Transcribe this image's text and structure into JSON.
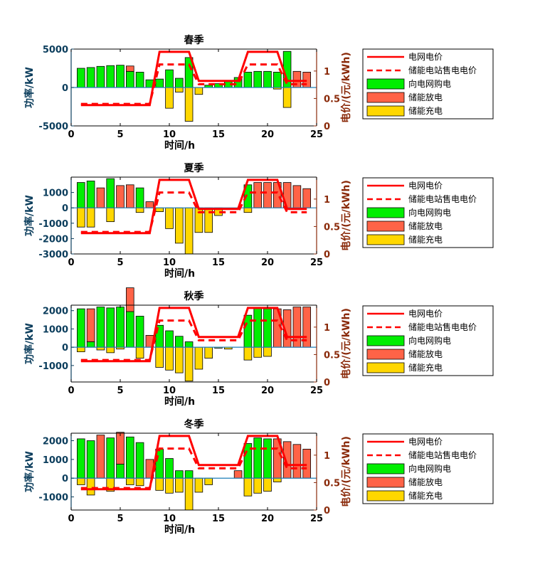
{
  "colors": {
    "grid_price": "#ff0000",
    "sell_price": "#ff0000",
    "buy": "#00ee00",
    "discharge": "#ff6347",
    "charge": "#ffd700",
    "left_axis": "#0b3d5c",
    "right_axis": "#8a2a0a",
    "zero_line": "#1e7fb8"
  },
  "chart_data": [
    {
      "type": "bar",
      "title": "春季",
      "xlabel": "时间/h",
      "ylabel": "功率/kW",
      "y2label": "电价/(元/kWh)",
      "xlim": [
        0,
        25
      ],
      "xticks": [
        0,
        5,
        10,
        15,
        20,
        25
      ],
      "xtick_labels": [
        "0",
        "5",
        "10",
        "15",
        "20",
        "25"
      ],
      "ylim": [
        -5000,
        5000
      ],
      "yticks": [
        -5000,
        0,
        5000
      ],
      "ytick_labels": [
        "-5000",
        "0",
        "5000"
      ],
      "y2lim": [
        0,
        1.4
      ],
      "y2ticks": [
        0,
        0.5,
        1
      ],
      "y2tick_labels": [
        "0",
        "0.5",
        "1"
      ],
      "hours": [
        1,
        2,
        3,
        4,
        5,
        6,
        7,
        8,
        9,
        10,
        11,
        12,
        13,
        14,
        15,
        16,
        17,
        18,
        19,
        20,
        21,
        22,
        23,
        24
      ],
      "series": [
        {
          "name": "电网电价",
          "kind": "line",
          "axis": "right",
          "values": [
            0.38,
            0.38,
            0.38,
            0.38,
            0.38,
            0.38,
            0.38,
            0.38,
            1.35,
            1.35,
            1.35,
            1.35,
            0.82,
            0.82,
            0.82,
            0.82,
            0.82,
            1.35,
            1.35,
            1.35,
            1.35,
            0.82,
            0.82,
            0.82
          ]
        },
        {
          "name": "储能电站售电电价",
          "kind": "dashed-line",
          "axis": "right",
          "values": [
            0.4,
            0.4,
            0.4,
            0.4,
            0.4,
            0.4,
            0.4,
            0.4,
            1.12,
            1.12,
            1.12,
            1.12,
            0.76,
            0.76,
            0.76,
            0.76,
            0.76,
            1.12,
            1.12,
            1.12,
            1.12,
            0.76,
            0.76,
            0.76
          ]
        },
        {
          "name": "向电网购电",
          "kind": "bar",
          "values": [
            2500,
            2600,
            2750,
            2850,
            2900,
            2100,
            2000,
            1000,
            1100,
            2300,
            1200,
            3900,
            0,
            300,
            500,
            800,
            1300,
            2000,
            2100,
            2100,
            2000,
            4700,
            0,
            0
          ]
        },
        {
          "name": "储能放电",
          "kind": "bar",
          "values": [
            0,
            0,
            0,
            0,
            0,
            700,
            0,
            0,
            0,
            0,
            0,
            0,
            0,
            0,
            0,
            0,
            0,
            0,
            0,
            0,
            0,
            0,
            2100,
            2000
          ]
        },
        {
          "name": "储能充电",
          "kind": "bar",
          "values": [
            0,
            0,
            0,
            0,
            0,
            0,
            0,
            0,
            0,
            -2700,
            -600,
            -4400,
            -900,
            0,
            0,
            0,
            0,
            0,
            0,
            0,
            -200,
            -2600,
            0,
            0
          ]
        }
      ]
    },
    {
      "type": "bar",
      "title": "夏季",
      "xlabel": "时间/h",
      "ylabel": "功率/kW",
      "y2label": "电价/(元/kWh)",
      "xlim": [
        0,
        25
      ],
      "xticks": [
        0,
        5,
        10,
        15,
        20,
        25
      ],
      "xtick_labels": [
        "0",
        "5",
        "10",
        "15",
        "20",
        "25"
      ],
      "ylim": [
        -3000,
        2000
      ],
      "yticks": [
        -3000,
        -2000,
        -1000,
        0,
        1000
      ],
      "ytick_labels": [
        "-3000",
        "-2000",
        "-1000",
        "0",
        "1000"
      ],
      "y2lim": [
        0,
        1.4
      ],
      "y2ticks": [
        0,
        0.5,
        1
      ],
      "y2tick_labels": [
        "0",
        "0.5",
        "1"
      ],
      "hours": [
        1,
        2,
        3,
        4,
        5,
        6,
        7,
        8,
        9,
        10,
        11,
        12,
        13,
        14,
        15,
        16,
        17,
        18,
        19,
        20,
        21,
        22,
        23,
        24
      ],
      "series": [
        {
          "name": "电网电价",
          "kind": "line",
          "axis": "right",
          "values": [
            0.38,
            0.38,
            0.38,
            0.38,
            0.38,
            0.38,
            0.38,
            0.38,
            1.35,
            1.35,
            1.35,
            1.35,
            0.82,
            0.82,
            0.82,
            0.82,
            0.82,
            1.35,
            1.35,
            1.35,
            1.35,
            0.82,
            0.82,
            0.82
          ]
        },
        {
          "name": "储能电站售电电价",
          "kind": "dashed-line",
          "axis": "right",
          "values": [
            0.4,
            0.4,
            0.4,
            0.4,
            0.4,
            0.4,
            0.4,
            0.4,
            1.12,
            1.12,
            1.12,
            1.12,
            0.76,
            0.76,
            0.76,
            0.76,
            0.76,
            1.12,
            1.12,
            1.12,
            1.12,
            0.76,
            0.76,
            0.76
          ]
        },
        {
          "name": "向电网购电",
          "kind": "bar",
          "values": [
            1650,
            1750,
            0,
            1900,
            0,
            0,
            1300,
            0,
            0,
            0,
            0,
            0,
            0,
            0,
            0,
            0,
            0,
            1500,
            0,
            0,
            0,
            0,
            0,
            0
          ]
        },
        {
          "name": "储能放电",
          "kind": "bar",
          "values": [
            0,
            0,
            1300,
            0,
            1450,
            1500,
            0,
            400,
            0,
            0,
            0,
            0,
            0,
            0,
            0,
            0,
            0,
            0,
            1650,
            1650,
            1650,
            1650,
            1450,
            1250
          ]
        },
        {
          "name": "储能充电",
          "kind": "bar",
          "values": [
            -1250,
            -1250,
            0,
            -900,
            0,
            0,
            -300,
            0,
            -250,
            -1350,
            -2300,
            -3000,
            -1600,
            -1600,
            -500,
            0,
            0,
            -300,
            0,
            0,
            0,
            0,
            0,
            0
          ]
        }
      ]
    },
    {
      "type": "bar",
      "title": "秋季",
      "xlabel": "时间/h",
      "ylabel": "功率/kW",
      "y2label": "电价/(元/kWh)",
      "xlim": [
        0,
        25
      ],
      "xticks": [
        0,
        5,
        10,
        15,
        20,
        25
      ],
      "xtick_labels": [
        "0",
        "5",
        "10",
        "15",
        "20",
        "25"
      ],
      "ylim": [
        -1900,
        2300
      ],
      "yticks": [
        -1000,
        0,
        1000,
        2000
      ],
      "ytick_labels": [
        "-1000",
        "0",
        "1000",
        "2000"
      ],
      "y2lim": [
        0,
        1.4
      ],
      "y2ticks": [
        0,
        0.5,
        1
      ],
      "y2tick_labels": [
        "0",
        "0.5",
        "1"
      ],
      "hours": [
        1,
        2,
        3,
        4,
        5,
        6,
        7,
        8,
        9,
        10,
        11,
        12,
        13,
        14,
        15,
        16,
        17,
        18,
        19,
        20,
        21,
        22,
        23,
        24
      ],
      "series": [
        {
          "name": "电网电价",
          "kind": "line",
          "axis": "right",
          "values": [
            0.38,
            0.38,
            0.38,
            0.38,
            0.38,
            0.38,
            0.38,
            0.38,
            1.35,
            1.35,
            1.35,
            1.35,
            0.82,
            0.82,
            0.82,
            0.82,
            0.82,
            1.35,
            1.35,
            1.35,
            1.35,
            0.82,
            0.82,
            0.82
          ]
        },
        {
          "name": "储能电站售电电价",
          "kind": "dashed-line",
          "axis": "right",
          "values": [
            0.4,
            0.4,
            0.4,
            0.4,
            0.4,
            0.4,
            0.4,
            0.4,
            1.12,
            1.12,
            1.12,
            1.12,
            0.76,
            0.76,
            0.76,
            0.76,
            0.76,
            1.12,
            1.12,
            1.12,
            1.12,
            0.76,
            0.76,
            0.76
          ]
        },
        {
          "name": "向电网购电",
          "kind": "bar",
          "values": [
            2100,
            300,
            2200,
            2150,
            2200,
            1950,
            1700,
            0,
            1200,
            900,
            600,
            300,
            0,
            0,
            0,
            0,
            0,
            1750,
            2150,
            2100,
            0,
            0,
            0,
            0
          ]
        },
        {
          "name": "储能放电",
          "kind": "bar",
          "values": [
            0,
            1800,
            0,
            0,
            0,
            1300,
            0,
            650,
            0,
            0,
            0,
            0,
            0,
            0,
            0,
            0,
            0,
            0,
            0,
            0,
            2100,
            2050,
            2200,
            2200
          ]
        },
        {
          "name": "储能充电",
          "kind": "bar",
          "values": [
            -250,
            0,
            -150,
            -300,
            -100,
            0,
            -600,
            0,
            -1100,
            -1250,
            -1400,
            -1850,
            -1200,
            -600,
            -50,
            -100,
            0,
            -700,
            -550,
            -500,
            0,
            0,
            0,
            0
          ]
        }
      ]
    },
    {
      "type": "bar",
      "title": "冬季",
      "xlabel": "时间/h",
      "ylabel": "功率/kW",
      "y2label": "电价/(元/kWh)",
      "xlim": [
        0,
        25
      ],
      "xticks": [
        0,
        5,
        10,
        15,
        20,
        25
      ],
      "xtick_labels": [
        "0",
        "5",
        "10",
        "15",
        "20",
        "25"
      ],
      "ylim": [
        -1700,
        2400
      ],
      "yticks": [
        -1000,
        0,
        1000,
        2000
      ],
      "ytick_labels": [
        "-1000",
        "0",
        "1000",
        "2000"
      ],
      "y2lim": [
        0,
        1.4
      ],
      "y2ticks": [
        0,
        0.5,
        1
      ],
      "y2tick_labels": [
        "0",
        "0.5",
        "1"
      ],
      "hours": [
        1,
        2,
        3,
        4,
        5,
        6,
        7,
        8,
        9,
        10,
        11,
        12,
        13,
        14,
        15,
        16,
        17,
        18,
        19,
        20,
        21,
        22,
        23,
        24
      ],
      "series": [
        {
          "name": "电网电价",
          "kind": "line",
          "axis": "right",
          "values": [
            0.38,
            0.38,
            0.38,
            0.38,
            0.38,
            0.38,
            0.38,
            0.38,
            1.35,
            1.35,
            1.35,
            1.35,
            0.82,
            0.82,
            0.82,
            0.82,
            0.82,
            1.35,
            1.35,
            1.35,
            1.35,
            0.82,
            0.82,
            0.82
          ]
        },
        {
          "name": "储能电站售电电价",
          "kind": "dashed-line",
          "axis": "right",
          "values": [
            0.4,
            0.4,
            0.4,
            0.4,
            0.4,
            0.4,
            0.4,
            0.4,
            1.12,
            1.12,
            1.12,
            1.12,
            0.76,
            0.76,
            0.76,
            0.76,
            0.76,
            1.12,
            1.12,
            1.12,
            1.12,
            0.76,
            0.76,
            0.76
          ]
        },
        {
          "name": "向电网购电",
          "kind": "bar",
          "values": [
            2100,
            2000,
            0,
            2150,
            750,
            2200,
            1900,
            0,
            1550,
            1050,
            400,
            400,
            0,
            0,
            0,
            0,
            0,
            1850,
            2150,
            2100,
            0,
            0,
            0,
            0
          ]
        },
        {
          "name": "储能放电",
          "kind": "bar",
          "values": [
            0,
            0,
            2300,
            0,
            1700,
            0,
            0,
            1000,
            0,
            0,
            0,
            0,
            0,
            0,
            0,
            0,
            400,
            0,
            0,
            0,
            2100,
            1950,
            1800,
            1550
          ]
        },
        {
          "name": "储能充电",
          "kind": "bar",
          "values": [
            -350,
            -900,
            0,
            -700,
            0,
            -350,
            -400,
            0,
            -650,
            -800,
            -750,
            -1700,
            -750,
            -350,
            0,
            0,
            0,
            -950,
            -800,
            -700,
            -200,
            0,
            0,
            0
          ]
        }
      ]
    }
  ]
}
